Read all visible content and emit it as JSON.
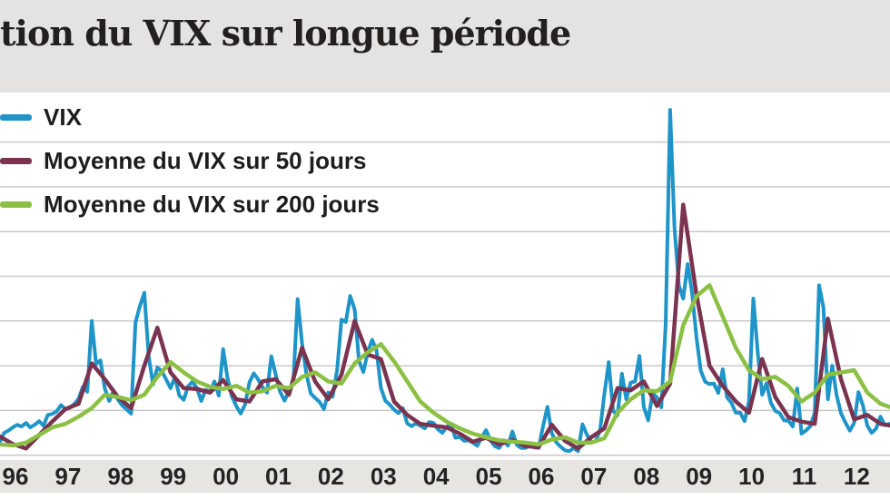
{
  "title": "tion du VIX sur longue période",
  "legend": [
    {
      "label": "VIX",
      "color": "#1e95c8"
    },
    {
      "label": "Moyenne du VIX sur 50 jours",
      "color": "#7a3450"
    },
    {
      "label": "Moyenne du VIX sur 200 jours",
      "color": "#8cc044"
    }
  ],
  "colors": {
    "title_band_bg": "#e4e3e1",
    "axis_band_bg": "#e6e5e2",
    "plot_bg": "#ffffff",
    "gridline": "#c9c9c9",
    "vix_line": "#1e95c8",
    "ma50_line": "#7a3450",
    "ma200_line": "#8cc044"
  },
  "chart_data": {
    "type": "line",
    "title": "tion du VIX sur longue période",
    "xlabel": "",
    "ylabel": "",
    "grid": true,
    "legend_position": "top-left",
    "x_tick_labels": [
      "96",
      "97",
      "98",
      "99",
      "00",
      "01",
      "02",
      "03",
      "04",
      "05",
      "06",
      "07",
      "08",
      "09",
      "10",
      "11",
      "12"
    ],
    "x_range_years": [
      1996.0,
      2013.0
    ],
    "ylim": [
      9,
      90
    ],
    "y_gridlines": [
      10,
      20,
      30,
      40,
      50,
      60,
      70,
      80
    ],
    "series": [
      {
        "name": "VIX",
        "color": "#1e95c8",
        "start_year": 1995.667,
        "step_years": 0.083333,
        "values": [
          13.5,
          14.5,
          13.2,
          12.6,
          12.8,
          15.0,
          15.5,
          16.2,
          16.8,
          16.4,
          17.2,
          16.2,
          16.8,
          17.6,
          16.6,
          19.0,
          19.2,
          19.8,
          21.2,
          20.3,
          20.6,
          21.4,
          22.6,
          25.3,
          24.2,
          40.0,
          30.4,
          31.2,
          24.9,
          22.1,
          24.4,
          22.4,
          21.1,
          20.2,
          19.3,
          39.7,
          43.3,
          46.3,
          32.1,
          25.8,
          29.6,
          28.8,
          26.9,
          25.0,
          27.4,
          23.3,
          22.4,
          25.4,
          26.4,
          25.0,
          22.1,
          24.6,
          24.2,
          26.5,
          23.3,
          33.7,
          27.2,
          23.1,
          21.0,
          19.3,
          21.3,
          26.3,
          28.3,
          26.9,
          25.2,
          24.0,
          32.1,
          28.0,
          24.2,
          22.2,
          24.3,
          26.0,
          44.9,
          35.0,
          28.2,
          23.8,
          22.8,
          21.9,
          20.3,
          24.0,
          23.1,
          29.0,
          40.3,
          39.8,
          45.6,
          42.6,
          31.1,
          28.6,
          33.0,
          35.8,
          33.4,
          25.1,
          22.2,
          21.3,
          20.2,
          19.4,
          20.5,
          17.1,
          16.5,
          17.1,
          16.6,
          16.0,
          17.4,
          17.2,
          15.8,
          15.0,
          16.3,
          17.0,
          13.9,
          14.1,
          13.2,
          13.3,
          12.8,
          12.1,
          14.0,
          15.6,
          13.3,
          12.0,
          11.6,
          13.3,
          12.1,
          15.3,
          12.3,
          11.6,
          11.6,
          12.3,
          11.7,
          11.6,
          16.4,
          20.8,
          14.9,
          12.9,
          11.9,
          11.1,
          10.9,
          11.6,
          10.9,
          16.9,
          14.6,
          12.9,
          13.1,
          15.5,
          23.7,
          30.8,
          19.9,
          18.9,
          28.2,
          22.5,
          26.2,
          26.5,
          32.2,
          20.8,
          17.8,
          23.9,
          22.9,
          20.7,
          39.4,
          87.2,
          60.8,
          48.0,
          45.0,
          52.7,
          46.4,
          36.5,
          28.9,
          26.4,
          25.9,
          26.0,
          23.9,
          29.2,
          22.9,
          21.7,
          19.5,
          19.5,
          17.6,
          22.1,
          45.0,
          32.9,
          23.5,
          26.1,
          21.7,
          19.9,
          19.4,
          17.8,
          17.7,
          16.4,
          24.9,
          14.8,
          15.5,
          16.5,
          19.5,
          48.0,
          43.0,
          22.5,
          30.0,
          23.4,
          19.4,
          17.3,
          15.5,
          17.2,
          24.1,
          21.1,
          16.6,
          15.0,
          15.9,
          18.6,
          16.7,
          17.0,
          16.0
        ]
      },
      {
        "name": "Moyenne du VIX sur 50 jours",
        "color": "#7a3450",
        "start_year": 1995.75,
        "step_years": 0.25,
        "values": [
          13.8,
          14.2,
          12.5,
          11.5,
          14.5,
          17.5,
          20.3,
          21.5,
          30.5,
          27.0,
          23.0,
          20.5,
          30.0,
          38.5,
          28.5,
          25.0,
          24.8,
          24.0,
          26.8,
          22.5,
          22.0,
          26.5,
          27.0,
          23.5,
          34.0,
          26.5,
          22.5,
          28.0,
          40.0,
          32.5,
          31.5,
          22.0,
          19.0,
          17.0,
          16.6,
          16.2,
          14.8,
          13.0,
          13.9,
          12.4,
          13.4,
          12.0,
          11.8,
          16.8,
          13.2,
          11.5,
          14.0,
          16.0,
          25.0,
          24.5,
          26.5,
          21.0,
          26.0,
          66.0,
          46.0,
          30.0,
          25.5,
          22.0,
          19.5,
          31.5,
          23.0,
          18.5,
          17.5,
          17.0,
          40.5,
          27.0,
          18.0,
          19.0,
          17.0,
          16.5
        ]
      },
      {
        "name": "Moyenne du VIX sur 200 jours",
        "color": "#8cc044",
        "start_year": 1995.75,
        "step_years": 0.25,
        "values": [
          13.5,
          12.4,
          12.2,
          12.8,
          14.5,
          16.2,
          17.0,
          18.6,
          20.5,
          23.5,
          23.0,
          22.3,
          23.5,
          27.5,
          30.8,
          28.5,
          26.5,
          25.3,
          24.8,
          25.5,
          24.0,
          24.3,
          25.5,
          25.0,
          27.5,
          28.5,
          26.5,
          26.0,
          30.5,
          33.0,
          34.8,
          31.0,
          26.5,
          22.0,
          19.5,
          17.5,
          16.0,
          14.8,
          14.0,
          13.3,
          13.0,
          12.8,
          12.4,
          13.5,
          14.0,
          12.8,
          12.8,
          13.8,
          19.5,
          22.5,
          24.5,
          24.3,
          26.5,
          39.0,
          45.5,
          48.0,
          41.0,
          34.0,
          29.0,
          27.0,
          27.5,
          25.5,
          22.0,
          24.0,
          28.0,
          28.5,
          29.0,
          24.0,
          21.5,
          20.5
        ]
      }
    ]
  }
}
